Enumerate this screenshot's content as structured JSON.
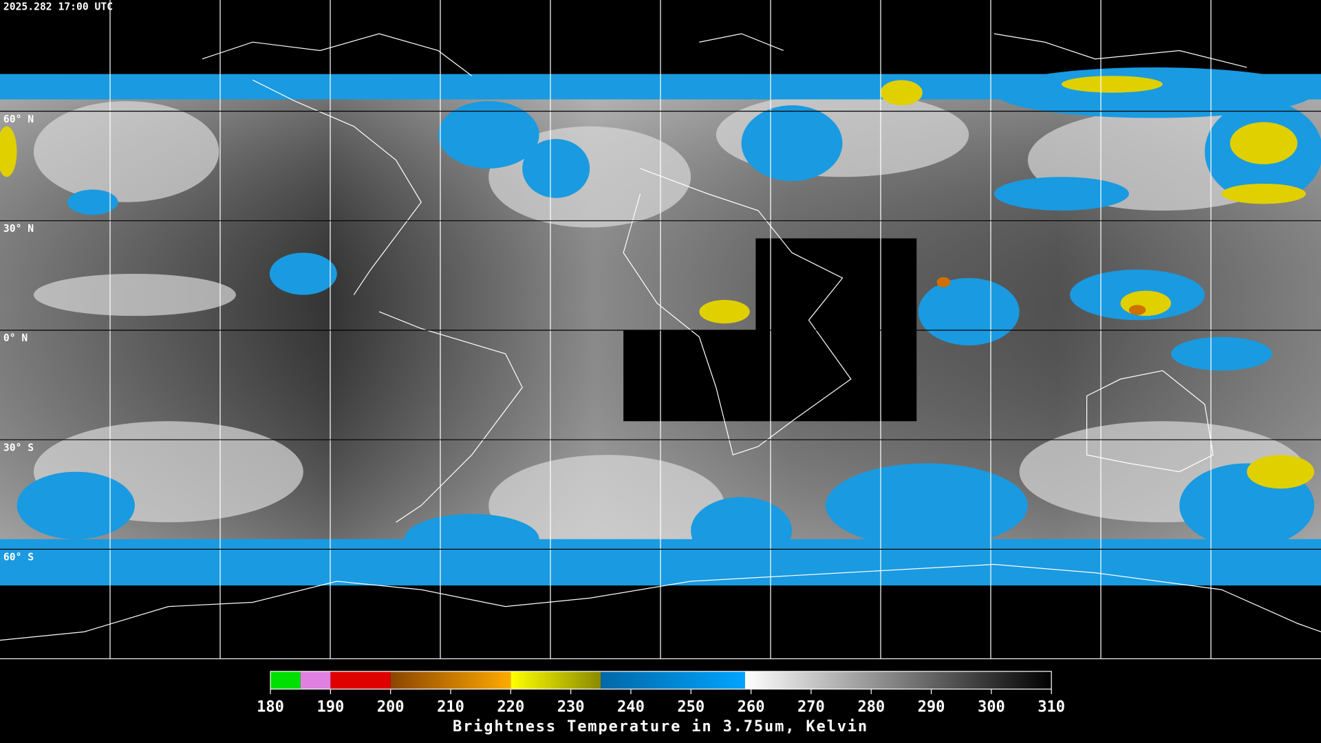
{
  "timestamp": "2025.282 17:00 UTC",
  "latitudes": [
    {
      "value": 60,
      "label": "60° N"
    },
    {
      "value": 30,
      "label": "30° N"
    },
    {
      "value": 0,
      "label": "0° N"
    },
    {
      "value": -30,
      "label": "30° S"
    },
    {
      "value": -60,
      "label": "60° S"
    }
  ],
  "colorbar": {
    "title": "Brightness Temperature in 3.75um, Kelvin",
    "range": [
      180,
      310
    ],
    "ticks": [
      180,
      190,
      200,
      210,
      220,
      230,
      240,
      250,
      260,
      270,
      280,
      290,
      300,
      310
    ],
    "segments": [
      {
        "from": 180,
        "to": 185,
        "color": "#00e000",
        "color_end": "#00e000"
      },
      {
        "from": 185,
        "to": 190,
        "color": "#e080e0",
        "color_end": "#e080e0"
      },
      {
        "from": 190,
        "to": 200,
        "color": "#e00000",
        "color_end": "#e00000"
      },
      {
        "from": 200,
        "to": 220,
        "color": "#8b4500",
        "color_end": "#ffaa00"
      },
      {
        "from": 220,
        "to": 235,
        "color": "#ffff00",
        "color_end": "#8a8a00"
      },
      {
        "from": 235,
        "to": 259,
        "color": "#0068a8",
        "color_end": "#00a4ff"
      },
      {
        "from": 259,
        "to": 310,
        "color": "#ffffff",
        "color_end": "#000000"
      }
    ]
  }
}
